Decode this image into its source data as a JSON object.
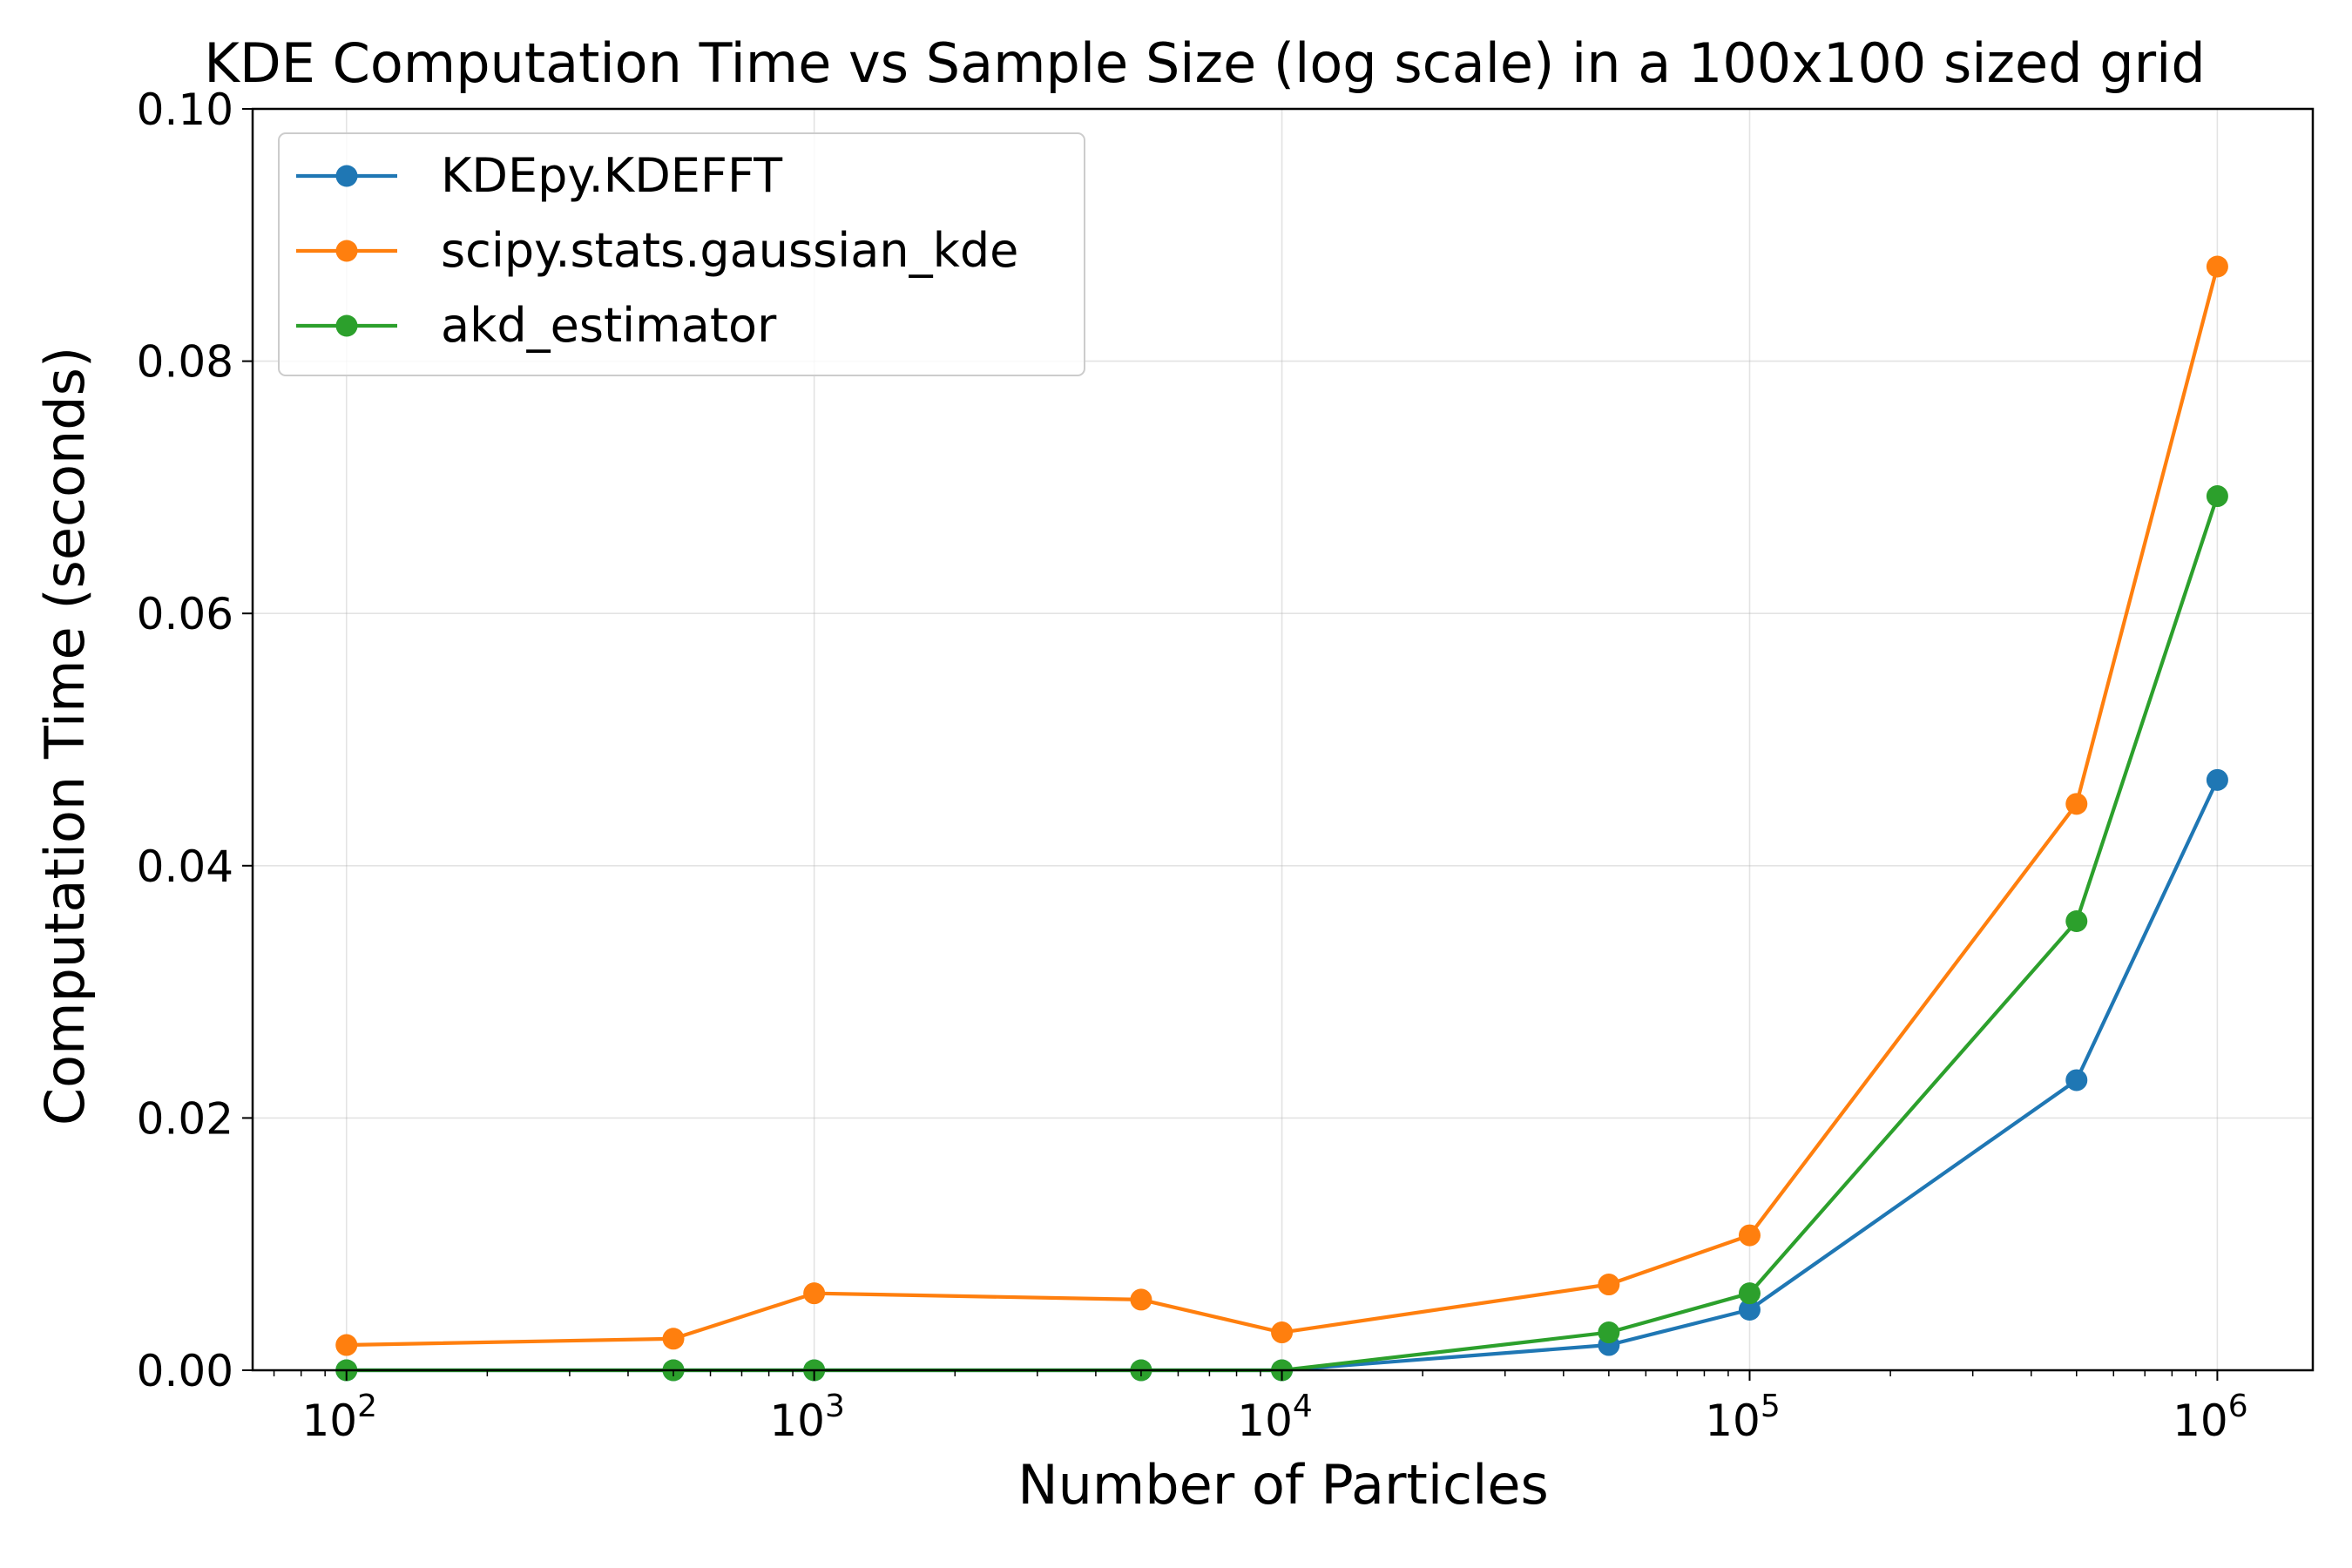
{
  "chart_data": {
    "type": "line",
    "title": "KDE Computation Time vs Sample Size (log scale) in a 100x100 sized grid",
    "xlabel": "Number of Particles",
    "ylabel": "Computation Time (seconds)",
    "xscale": "log",
    "xlim": [
      63,
      1600000
    ],
    "ylim": [
      0.0,
      0.1
    ],
    "grid": true,
    "legend_position": "top-left",
    "x_ticks": [
      {
        "value": 100,
        "base": "10",
        "exp": "2"
      },
      {
        "value": 1000,
        "base": "10",
        "exp": "3"
      },
      {
        "value": 10000,
        "base": "10",
        "exp": "4"
      },
      {
        "value": 100000,
        "base": "10",
        "exp": "5"
      },
      {
        "value": 1000000,
        "base": "10",
        "exp": "6"
      }
    ],
    "y_ticks": [
      {
        "value": 0.0,
        "label": "0.00"
      },
      {
        "value": 0.02,
        "label": "0.02"
      },
      {
        "value": 0.04,
        "label": "0.04"
      },
      {
        "value": 0.06,
        "label": "0.06"
      },
      {
        "value": 0.08,
        "label": "0.08"
      },
      {
        "value": 0.1,
        "label": "0.10"
      }
    ],
    "x": [
      100,
      500,
      1000,
      5000,
      10000,
      50000,
      100000,
      500000,
      1000000
    ],
    "series": [
      {
        "name": "KDEpy.KDEFFT",
        "color": "#1f77b4",
        "values": [
          0.0,
          0.0,
          0.0,
          0.0,
          0.0,
          0.002,
          0.0048,
          0.023,
          0.0468
        ]
      },
      {
        "name": "scipy.stats.gaussian_kde",
        "color": "#ff7f0e",
        "values": [
          0.002,
          0.0025,
          0.0061,
          0.0056,
          0.003,
          0.0068,
          0.0107,
          0.0449,
          0.0875
        ]
      },
      {
        "name": "akd_estimator",
        "color": "#2ca02c",
        "values": [
          0.0,
          0.0,
          0.0,
          0.0,
          0.0,
          0.003,
          0.0061,
          0.0356,
          0.0693
        ]
      }
    ]
  }
}
